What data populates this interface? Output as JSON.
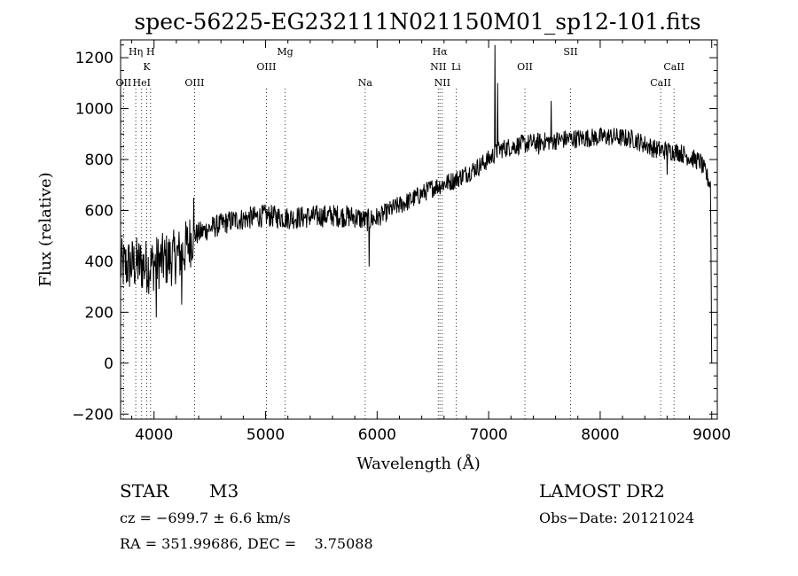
{
  "chart_data": {
    "type": "line",
    "title": "spec-56225-EG232111N021150M01_sp12-101.fits",
    "xlabel": "Wavelength (Å)",
    "ylabel": "Flux (relative)",
    "xlim": [
      3700,
      9050
    ],
    "ylim": [
      -220,
      1270
    ],
    "xticks": [
      4000,
      5000,
      6000,
      7000,
      8000,
      9000
    ],
    "yticks": [
      -200,
      0,
      200,
      400,
      600,
      800,
      1000,
      1200
    ],
    "continuum": [
      [
        3700,
        380
      ],
      [
        3850,
        390
      ],
      [
        3950,
        380
      ],
      [
        4050,
        400
      ],
      [
        4150,
        410
      ],
      [
        4250,
        430
      ],
      [
        4350,
        500
      ],
      [
        4500,
        530
      ],
      [
        4700,
        560
      ],
      [
        5000,
        580
      ],
      [
        5200,
        570
      ],
      [
        5400,
        575
      ],
      [
        5600,
        580
      ],
      [
        5800,
        575
      ],
      [
        5900,
        560
      ],
      [
        6000,
        570
      ],
      [
        6150,
        610
      ],
      [
        6300,
        640
      ],
      [
        6500,
        690
      ],
      [
        6700,
        720
      ],
      [
        6900,
        770
      ],
      [
        7000,
        800
      ],
      [
        7100,
        840
      ],
      [
        7300,
        860
      ],
      [
        7500,
        870
      ],
      [
        7700,
        880
      ],
      [
        7900,
        885
      ],
      [
        8100,
        890
      ],
      [
        8300,
        880
      ],
      [
        8500,
        840
      ],
      [
        8700,
        830
      ],
      [
        8900,
        790
      ],
      [
        8990,
        700
      ],
      [
        9000,
        0
      ]
    ],
    "features": [
      {
        "x": 4020,
        "y": 180
      },
      {
        "x": 4250,
        "y": 230
      },
      {
        "x": 4355,
        "y": 650
      },
      {
        "x": 5930,
        "y": 380
      },
      {
        "x": 7055,
        "y": 1250
      },
      {
        "x": 7080,
        "y": 1100
      },
      {
        "x": 7450,
        "y": 820
      },
      {
        "x": 7560,
        "y": 1030
      },
      {
        "x": 8600,
        "y": 740
      }
    ],
    "spectral_lines": [
      {
        "name": "Hη",
        "x": 3836,
        "row": 0
      },
      {
        "name": "H",
        "x": 3969,
        "row": 0
      },
      {
        "name": "K",
        "x": 3934,
        "row": 1
      },
      {
        "name": "OII",
        "x": 3727,
        "row": 2
      },
      {
        "name": "HeI",
        "x": 3889,
        "row": 2
      },
      {
        "name": "OIII",
        "x": 4363,
        "row": 2
      },
      {
        "name": "OIII",
        "x": 5007,
        "row": 1
      },
      {
        "name": "Mg",
        "x": 5175,
        "row": 0
      },
      {
        "name": "Na",
        "x": 5893,
        "row": 2
      },
      {
        "name": "Hα",
        "x": 6563,
        "row": 0
      },
      {
        "name": "NII",
        "x": 6548,
        "row": 1
      },
      {
        "name": "Li",
        "x": 6708,
        "row": 1
      },
      {
        "name": "NII",
        "x": 6584,
        "row": 2
      },
      {
        "name": "OII",
        "x": 7325,
        "row": 1
      },
      {
        "name": "SII",
        "x": 7734,
        "row": 0
      },
      {
        "name": "CaII",
        "x": 8542,
        "row": 2
      },
      {
        "name": "CaII",
        "x": 8662,
        "row": 1
      }
    ]
  },
  "info": {
    "object_class": "STAR",
    "subclass": "M3",
    "survey": "LAMOST DR2",
    "redshift": "cz = −699.7 ± 6.6 km/s",
    "obs_date": "Obs−Date: 20121024",
    "coords": "RA = 351.99686, DEC =    3.75088"
  }
}
